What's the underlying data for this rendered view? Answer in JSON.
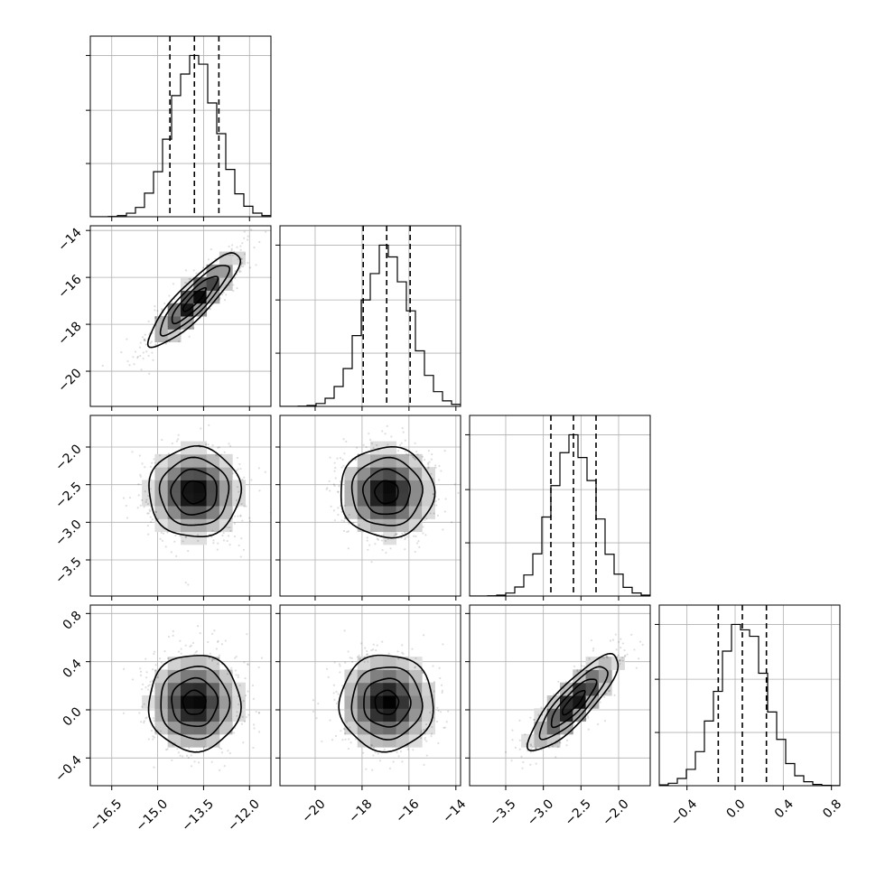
{
  "chart_data": {
    "type": "corner",
    "grid": true,
    "parameters": [
      {
        "mean": -13.8,
        "std": 0.75,
        "range": [
          -17.2,
          -11.3
        ],
        "ticks": [
          -16.5,
          -15.0,
          -13.5,
          -12.0
        ],
        "tick_labels": [
          "−16.5",
          "−15.0",
          "−13.5",
          "−12.0"
        ],
        "quantiles": [
          -14.6,
          -13.8,
          -13.0
        ]
      },
      {
        "mean": -16.95,
        "std": 1.0,
        "range": [
          -21.5,
          -13.8
        ],
        "ticks": [
          -20,
          -18,
          -16,
          -14
        ],
        "tick_labels": [
          "−20",
          "−18",
          "−16",
          "−14"
        ],
        "quantiles": [
          -17.95,
          -16.95,
          -15.95
        ]
      },
      {
        "mean": -2.6,
        "std": 0.3,
        "range": [
          -3.98,
          -1.58
        ],
        "ticks": [
          -3.5,
          -3.0,
          -2.5,
          -2.0
        ],
        "tick_labels": [
          "−3.5",
          "−3.0",
          "−2.5",
          "−2.0"
        ],
        "quantiles": [
          -2.9,
          -2.6,
          -2.3
        ]
      },
      {
        "mean": 0.06,
        "std": 0.2,
        "range": [
          -0.63,
          0.87
        ],
        "ticks": [
          -0.4,
          0.0,
          0.4,
          0.8
        ],
        "tick_labels": [
          "−0.4",
          "0.0",
          "0.4",
          "0.8"
        ],
        "quantiles": [
          -0.14,
          0.06,
          0.26
        ]
      }
    ],
    "correlations": [
      {
        "i": 1,
        "j": 0,
        "rho": 0.88
      },
      {
        "i": 2,
        "j": 0,
        "rho": 0.0
      },
      {
        "i": 2,
        "j": 1,
        "rho": 0.0
      },
      {
        "i": 3,
        "j": 0,
        "rho": 0.0
      },
      {
        "i": 3,
        "j": 1,
        "rho": 0.0
      },
      {
        "i": 3,
        "j": 2,
        "rho": 0.85
      }
    ],
    "histogram_bins": 20,
    "contour_levels_sigma": [
      0.5,
      1.0,
      1.5,
      2.0
    ]
  }
}
